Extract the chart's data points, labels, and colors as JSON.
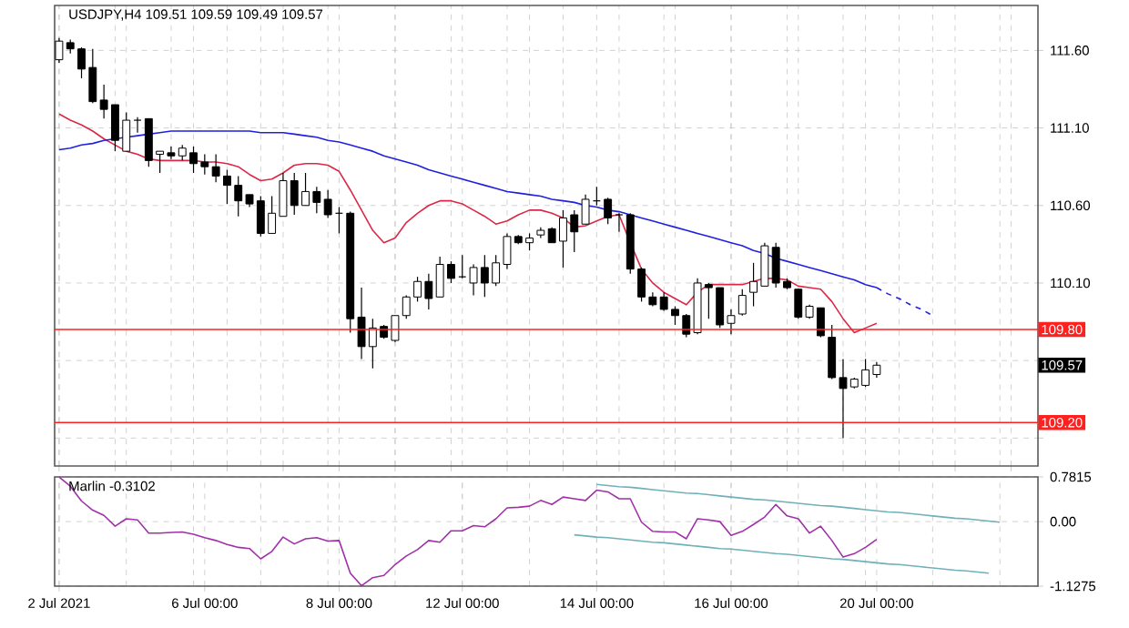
{
  "chart_data": [
    {
      "type": "candlestick",
      "title": "USDJPY,H4  109.51 109.59 109.49 109.57",
      "tick_labels": "y",
      "grid": true,
      "categories": [
        null,
        null,
        null,
        null,
        null,
        null,
        null,
        null,
        null,
        null,
        null,
        null,
        null,
        null,
        null,
        null,
        null,
        null,
        null,
        null,
        null,
        null,
        null,
        null,
        null,
        null,
        null,
        null,
        null,
        null,
        null,
        null,
        null,
        null,
        null,
        null,
        null,
        null,
        null,
        null,
        null,
        null,
        null,
        null,
        null,
        null,
        null,
        null,
        null,
        null,
        null,
        null,
        null,
        null,
        null,
        null,
        null,
        null,
        null,
        null,
        null,
        null,
        null,
        null,
        null,
        null,
        null,
        null,
        null,
        null,
        null,
        null,
        null,
        null,
        null,
        null,
        null,
        null,
        null,
        null,
        null,
        null,
        null,
        null,
        null,
        null,
        null,
        null
      ],
      "ylim": [
        108.92,
        111.89
      ],
      "yticks": [
        {
          "value": 109.1,
          "label": null
        },
        {
          "value": 109.6,
          "label": null
        },
        {
          "value": 110.1,
          "label": "110.10"
        },
        {
          "value": 110.6,
          "label": "110.60"
        },
        {
          "value": 111.1,
          "label": "111.10"
        },
        {
          "value": 111.6,
          "label": "111.60"
        }
      ],
      "ohlc": [
        [
          111.54,
          111.68,
          111.52,
          111.66
        ],
        [
          111.65,
          111.67,
          111.58,
          111.61
        ],
        [
          111.61,
          111.62,
          111.42,
          111.48
        ],
        [
          111.49,
          111.61,
          111.26,
          111.27
        ],
        [
          111.28,
          111.38,
          111.16,
          111.22
        ],
        [
          111.25,
          111.25,
          110.95,
          111.02
        ],
        [
          110.95,
          111.2,
          110.95,
          111.15
        ],
        [
          111.15,
          111.17,
          111.07,
          111.15
        ],
        [
          111.16,
          111.16,
          110.85,
          110.89
        ],
        [
          110.93,
          110.95,
          110.81,
          110.95
        ],
        [
          110.94,
          110.98,
          110.9,
          110.92
        ],
        [
          110.92,
          110.99,
          110.89,
          110.97
        ],
        [
          110.94,
          110.98,
          110.81,
          110.87
        ],
        [
          110.88,
          110.93,
          110.8,
          110.85
        ],
        [
          110.85,
          110.93,
          110.75,
          110.79
        ],
        [
          110.79,
          110.83,
          110.61,
          110.73
        ],
        [
          110.73,
          110.79,
          110.53,
          110.63
        ],
        [
          110.67,
          110.67,
          110.59,
          110.61
        ],
        [
          110.63,
          110.66,
          110.4,
          110.42
        ],
        [
          110.42,
          110.66,
          110.42,
          110.55
        ],
        [
          110.53,
          110.81,
          110.53,
          110.76
        ],
        [
          110.76,
          110.81,
          110.54,
          110.6
        ],
        [
          110.6,
          110.81,
          110.6,
          110.69
        ],
        [
          110.69,
          110.72,
          110.55,
          110.62
        ],
        [
          110.64,
          110.7,
          110.52,
          110.54
        ],
        [
          110.55,
          110.59,
          110.42,
          110.55
        ],
        [
          110.55,
          110.56,
          109.78,
          109.87
        ],
        [
          109.88,
          110.07,
          109.61,
          109.69
        ],
        [
          109.69,
          109.87,
          109.55,
          109.81
        ],
        [
          109.82,
          109.83,
          109.74,
          109.75
        ],
        [
          109.73,
          109.89,
          109.72,
          109.89
        ],
        [
          109.89,
          110.02,
          109.87,
          110.01
        ],
        [
          110.01,
          110.14,
          109.98,
          110.11
        ],
        [
          110.11,
          110.16,
          109.93,
          110.0
        ],
        [
          110.01,
          110.27,
          110.01,
          110.22
        ],
        [
          110.22,
          110.24,
          110.1,
          110.13
        ],
        [
          110.14,
          110.28,
          110.13,
          110.14
        ],
        [
          110.1,
          110.22,
          110.02,
          110.2
        ],
        [
          110.2,
          110.28,
          110.01,
          110.1
        ],
        [
          110.1,
          110.28,
          110.08,
          110.23
        ],
        [
          110.22,
          110.42,
          110.19,
          110.4
        ],
        [
          110.4,
          110.41,
          110.35,
          110.36
        ],
        [
          110.36,
          110.42,
          110.31,
          110.39
        ],
        [
          110.41,
          110.46,
          110.39,
          110.44
        ],
        [
          110.45,
          110.46,
          110.36,
          110.36
        ],
        [
          110.37,
          110.57,
          110.2,
          110.52
        ],
        [
          110.54,
          110.57,
          110.3,
          110.43
        ],
        [
          110.48,
          110.67,
          110.48,
          110.64
        ],
        [
          110.63,
          110.72,
          110.6,
          110.63
        ],
        [
          110.64,
          110.65,
          110.48,
          110.52
        ],
        [
          110.54,
          110.55,
          110.43,
          110.54
        ],
        [
          110.54,
          110.55,
          110.16,
          110.19
        ],
        [
          110.19,
          110.2,
          109.98,
          110.01
        ],
        [
          110.01,
          110.04,
          109.95,
          109.96
        ],
        [
          110.01,
          110.04,
          109.92,
          109.93
        ],
        [
          109.93,
          109.95,
          109.83,
          109.89
        ],
        [
          109.89,
          109.9,
          109.75,
          109.77
        ],
        [
          109.78,
          110.13,
          109.77,
          110.1
        ],
        [
          110.09,
          110.1,
          109.87,
          110.07
        ],
        [
          110.07,
          110.07,
          109.81,
          109.83
        ],
        [
          109.84,
          109.93,
          109.77,
          109.89
        ],
        [
          109.9,
          110.06,
          109.89,
          110.02
        ],
        [
          110.04,
          110.23,
          109.95,
          110.11
        ],
        [
          110.08,
          110.36,
          110.08,
          110.34
        ],
        [
          110.33,
          110.36,
          110.07,
          110.1
        ],
        [
          110.11,
          110.13,
          110.06,
          110.07
        ],
        [
          110.06,
          110.06,
          109.87,
          109.88
        ],
        [
          109.88,
          109.96,
          109.87,
          109.95
        ],
        [
          109.94,
          109.94,
          109.75,
          109.76
        ],
        [
          109.75,
          109.83,
          109.48,
          109.49
        ],
        [
          109.49,
          109.61,
          109.1,
          109.42
        ],
        [
          109.43,
          109.49,
          109.42,
          109.48
        ],
        [
          109.44,
          109.61,
          109.43,
          109.54
        ],
        [
          109.51,
          109.59,
          109.49,
          109.57
        ],
        null,
        null,
        null,
        null,
        null,
        null,
        null,
        null,
        null,
        null,
        null,
        null,
        null,
        null
      ],
      "series": [
        {
          "type": "line",
          "color": "#dc2846",
          "values": [
            111.19,
            111.15,
            111.12,
            111.08,
            111.03,
            110.99,
            110.95,
            110.93,
            110.9,
            110.89,
            110.89,
            110.89,
            110.89,
            110.88,
            110.88,
            110.87,
            110.85,
            110.8,
            110.76,
            110.77,
            110.81,
            110.86,
            110.87,
            110.87,
            110.86,
            110.82,
            110.7,
            110.57,
            110.44,
            110.36,
            110.39,
            110.49,
            110.55,
            110.6,
            110.63,
            110.63,
            110.61,
            110.57,
            110.53,
            110.48,
            110.5,
            110.54,
            110.57,
            110.57,
            110.55,
            110.52,
            110.46,
            110.47,
            110.5,
            110.53,
            110.54,
            110.36,
            110.19,
            110.1,
            110.04,
            110.0,
            109.96,
            110.04,
            110.09,
            110.09,
            110.09,
            110.09,
            110.11,
            110.13,
            110.13,
            110.12,
            110.08,
            110.07,
            110.06,
            109.98,
            109.87,
            109.78,
            109.81,
            109.84,
            null,
            null,
            null,
            null,
            null,
            null,
            null,
            null,
            null,
            null,
            null,
            null,
            null,
            null
          ]
        },
        {
          "type": "line",
          "color": "#2020e0",
          "values": [
            110.96,
            110.97,
            110.99,
            111.0,
            111.02,
            111.03,
            111.04,
            111.05,
            111.06,
            111.07,
            111.08,
            111.08,
            111.08,
            111.08,
            111.08,
            111.08,
            111.08,
            111.08,
            111.07,
            111.07,
            111.07,
            111.06,
            111.05,
            111.04,
            111.02,
            111.01,
            110.99,
            110.97,
            110.95,
            110.92,
            110.9,
            110.88,
            110.86,
            110.83,
            110.81,
            110.79,
            110.77,
            110.75,
            110.73,
            110.71,
            110.69,
            110.68,
            110.67,
            110.66,
            110.64,
            110.63,
            110.62,
            110.6,
            110.59,
            110.57,
            110.56,
            110.54,
            110.52,
            110.5,
            110.48,
            110.46,
            110.44,
            110.42,
            110.4,
            110.38,
            110.36,
            110.34,
            110.31,
            110.29,
            110.26,
            110.24,
            110.22,
            110.2,
            110.18,
            110.16,
            110.14,
            110.12,
            110.09,
            110.07,
            null,
            null,
            null,
            null,
            null,
            null,
            null,
            null,
            null,
            null,
            null,
            null,
            null,
            null
          ]
        },
        {
          "type": "line",
          "color": "#2020e0",
          "line_style": "dashed",
          "values": [
            null,
            null,
            null,
            null,
            null,
            null,
            null,
            null,
            null,
            null,
            null,
            null,
            null,
            null,
            null,
            null,
            null,
            null,
            null,
            null,
            null,
            null,
            null,
            null,
            null,
            null,
            null,
            null,
            null,
            null,
            null,
            null,
            null,
            null,
            null,
            null,
            null,
            null,
            null,
            null,
            null,
            null,
            null,
            null,
            null,
            null,
            null,
            null,
            null,
            null,
            null,
            null,
            null,
            null,
            null,
            null,
            null,
            null,
            null,
            null,
            null,
            null,
            null,
            null,
            null,
            null,
            null,
            null,
            null,
            null,
            null,
            null,
            null,
            110.07,
            110.03,
            110.0,
            109.96,
            109.93,
            109.89,
            null,
            null,
            null,
            null,
            null,
            null,
            null,
            null,
            null
          ]
        }
      ],
      "ref_lines": [
        {
          "axis": "y",
          "value": 109.8,
          "label": "109.80",
          "color": "#ff2020"
        },
        {
          "axis": "y",
          "value": 109.2,
          "label": "109.20",
          "color": "#ff2020"
        }
      ],
      "annotations": [
        {
          "text": "109.57",
          "y": 109.57
        }
      ]
    },
    {
      "type": "line",
      "title": "Marlin -0.3102",
      "grid": true,
      "categories": [
        "2 Jul 2021",
        null,
        null,
        null,
        null,
        null,
        null,
        null,
        null,
        null,
        null,
        null,
        null,
        "6 Jul 00:00",
        null,
        null,
        null,
        null,
        null,
        null,
        null,
        null,
        null,
        null,
        null,
        "8 Jul 00:00",
        null,
        null,
        null,
        null,
        null,
        null,
        null,
        null,
        null,
        null,
        "12 Jul 00:00",
        null,
        null,
        null,
        null,
        null,
        null,
        null,
        null,
        null,
        null,
        null,
        "14 Jul 00:00",
        null,
        null,
        null,
        null,
        null,
        null,
        null,
        null,
        null,
        null,
        null,
        "16 Jul 00:00",
        null,
        null,
        null,
        null,
        null,
        null,
        null,
        null,
        null,
        null,
        null,
        null,
        "20 Jul 00:00",
        null,
        null,
        null,
        null,
        null,
        null,
        null,
        null,
        null,
        null,
        null,
        null,
        null,
        null
      ],
      "ylim": [
        -1.1275,
        0.7815
      ],
      "yticks": [
        -1.1275,
        {
          "value": 0,
          "label": "0.00"
        },
        0.7815
      ],
      "series": [
        {
          "color": "#a030a8",
          "values": [
            0.78,
            0.62,
            0.36,
            0.2,
            0.11,
            -0.08,
            0.05,
            0.03,
            -0.2,
            -0.2,
            -0.19,
            -0.18,
            -0.22,
            -0.28,
            -0.33,
            -0.4,
            -0.45,
            -0.47,
            -0.65,
            -0.52,
            -0.27,
            -0.39,
            -0.3,
            -0.28,
            -0.34,
            -0.33,
            -0.9,
            -1.12,
            -0.98,
            -0.94,
            -0.75,
            -0.6,
            -0.49,
            -0.33,
            -0.36,
            -0.16,
            -0.16,
            -0.07,
            -0.09,
            0.05,
            0.24,
            0.25,
            0.27,
            0.37,
            0.3,
            0.43,
            0.4,
            0.37,
            0.55,
            0.52,
            0.4,
            0.4,
            -0.01,
            -0.17,
            -0.18,
            -0.18,
            -0.3,
            0.05,
            0.03,
            0.0,
            -0.24,
            -0.17,
            -0.05,
            0.08,
            0.3,
            0.1,
            0.05,
            -0.2,
            -0.08,
            -0.33,
            -0.62,
            -0.56,
            -0.45,
            -0.31,
            null,
            null,
            null,
            null,
            null,
            null,
            null,
            null,
            null,
            null,
            null,
            null,
            null,
            null
          ]
        },
        {
          "color": "#70b0b8",
          "values": [
            null,
            null,
            null,
            null,
            null,
            null,
            null,
            null,
            null,
            null,
            null,
            null,
            null,
            null,
            null,
            null,
            null,
            null,
            null,
            null,
            null,
            null,
            null,
            null,
            null,
            null,
            null,
            null,
            null,
            null,
            null,
            null,
            null,
            null,
            null,
            null,
            null,
            null,
            null,
            null,
            null,
            null,
            null,
            null,
            null,
            null,
            null,
            null,
            0.65,
            0.63,
            0.61,
            0.6,
            0.58,
            0.56,
            0.54,
            0.52,
            0.5,
            0.49,
            0.47,
            0.45,
            0.43,
            0.41,
            0.39,
            0.38,
            0.36,
            0.34,
            0.32,
            0.3,
            0.28,
            0.27,
            0.25,
            0.23,
            0.21,
            0.19,
            0.17,
            0.16,
            0.14,
            0.12,
            0.1,
            0.08,
            0.06,
            0.05,
            0.03,
            0.01,
            -0.01,
            null,
            null,
            null
          ]
        },
        {
          "color": "#70b0b8",
          "values": [
            null,
            null,
            null,
            null,
            null,
            null,
            null,
            null,
            null,
            null,
            null,
            null,
            null,
            null,
            null,
            null,
            null,
            null,
            null,
            null,
            null,
            null,
            null,
            null,
            null,
            null,
            null,
            null,
            null,
            null,
            null,
            null,
            null,
            null,
            null,
            null,
            null,
            null,
            null,
            null,
            null,
            null,
            null,
            null,
            null,
            null,
            -0.23,
            -0.25,
            -0.27,
            -0.28,
            -0.3,
            -0.32,
            -0.34,
            -0.36,
            -0.37,
            -0.39,
            -0.41,
            -0.43,
            -0.45,
            -0.47,
            -0.48,
            -0.5,
            -0.52,
            -0.54,
            -0.56,
            -0.57,
            -0.59,
            -0.61,
            -0.63,
            -0.65,
            -0.66,
            -0.68,
            -0.7,
            -0.72,
            -0.74,
            -0.75,
            -0.77,
            -0.79,
            -0.81,
            -0.83,
            -0.85,
            -0.86,
            -0.88,
            -0.9,
            null,
            null,
            null,
            null
          ]
        }
      ]
    }
  ]
}
